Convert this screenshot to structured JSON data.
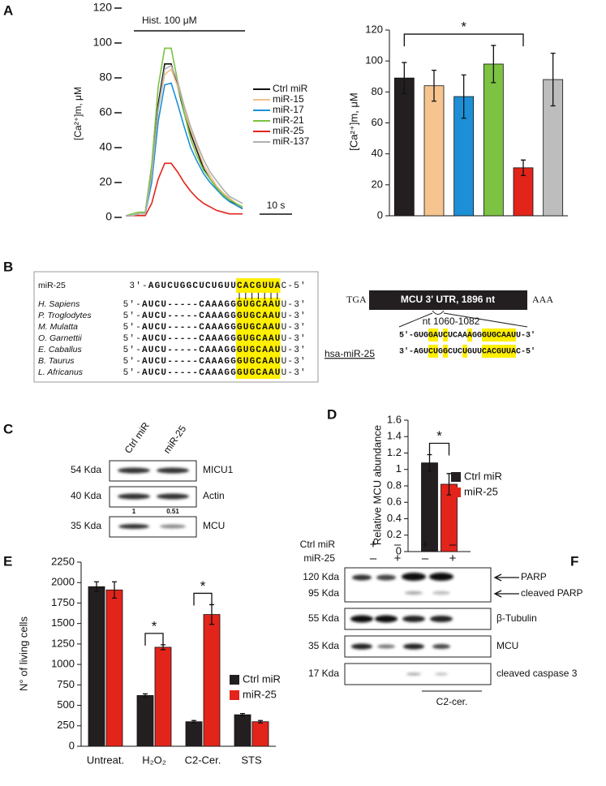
{
  "panel_labels": [
    "A",
    "B",
    "C",
    "D",
    "E",
    "F"
  ],
  "chart_data": [
    {
      "type": "line",
      "ylabel": "[Ca²⁺]m, μM",
      "treatment": "Hist. 100 μM",
      "scale_bar": {
        "length": 10,
        "label": "10 s"
      },
      "x": [
        0,
        2,
        4,
        6,
        8,
        10,
        12,
        14,
        16,
        18,
        20,
        22,
        24,
        26,
        28,
        30,
        32,
        34,
        36
      ],
      "xlim": [
        0,
        36
      ],
      "ylim": [
        0,
        120
      ],
      "yticks": [
        0,
        20,
        40,
        60,
        80,
        100,
        120
      ],
      "series": [
        {
          "name": "Ctrl miR",
          "color": "#111111",
          "values": [
            1,
            1,
            2,
            2,
            25,
            65,
            88,
            88,
            75,
            60,
            48,
            38,
            28,
            22,
            17,
            13,
            10,
            7,
            5
          ]
        },
        {
          "name": "miR-15",
          "color": "#f2c08e",
          "values": [
            1,
            1,
            2,
            2,
            24,
            62,
            82,
            85,
            75,
            62,
            50,
            40,
            30,
            24,
            18,
            14,
            11,
            8,
            6
          ]
        },
        {
          "name": "miR-17",
          "color": "#1d8fd6",
          "values": [
            1,
            1,
            2,
            2,
            20,
            55,
            76,
            77,
            65,
            52,
            40,
            32,
            25,
            20,
            16,
            12,
            9,
            7,
            5
          ]
        },
        {
          "name": "miR-21",
          "color": "#7dc242",
          "values": [
            1,
            2,
            3,
            3,
            30,
            75,
            97,
            97,
            78,
            60,
            45,
            35,
            27,
            22,
            17,
            13,
            10,
            8,
            6
          ]
        },
        {
          "name": "miR-25",
          "color": "#e3241b",
          "values": [
            1,
            1,
            1,
            1,
            8,
            22,
            31,
            31,
            26,
            20,
            15,
            11,
            8,
            6,
            4,
            3,
            2,
            2,
            2
          ]
        },
        {
          "name": "miR-137",
          "color": "#b0b0b0",
          "values": [
            1,
            1,
            2,
            2,
            24,
            62,
            85,
            87,
            78,
            64,
            52,
            42,
            33,
            26,
            21,
            16,
            12,
            10,
            8
          ]
        }
      ]
    },
    {
      "type": "bar",
      "ylabel": "[Ca²⁺]m, μM",
      "categories": [
        null,
        null,
        null,
        null,
        null,
        null
      ],
      "values": [
        89,
        84,
        77,
        98,
        31,
        88
      ],
      "errors": [
        10,
        10,
        14,
        12,
        5,
        17
      ],
      "colors": [
        "#231f20",
        "#f5c48f",
        "#1d8fd6",
        "#7dc242",
        "#e3241b",
        "#bdbdbd"
      ],
      "ylim": [
        0,
        120
      ],
      "yticks": [
        0,
        20,
        40,
        60,
        80,
        100,
        120
      ],
      "significance": [
        {
          "bars": [
            0,
            4
          ],
          "label": "*"
        }
      ]
    },
    {
      "type": "bar",
      "ylabel": "Relative MCU abundance",
      "categories": [
        null
      ],
      "series": [
        {
          "name": "Ctrl miR",
          "color": "#231f20",
          "values": [
            1.08
          ],
          "errors": [
            0.1
          ]
        },
        {
          "name": "miR-25",
          "color": "#e3241b",
          "values": [
            0.82
          ],
          "errors": [
            0.13
          ]
        }
      ],
      "ylim": [
        0,
        1.6
      ],
      "yticks": [
        0,
        0.2,
        0.4,
        0.6,
        0.8,
        1,
        1.2,
        1.4,
        1.6
      ],
      "significance": [
        {
          "category": 0,
          "label": "*"
        }
      ]
    },
    {
      "type": "bar",
      "ylabel": "N° of living cells",
      "categories": [
        "Untreat.",
        "H₂O₂",
        "C2-Cer.",
        "STS"
      ],
      "series": [
        {
          "name": "Ctrl miR",
          "color": "#231f20",
          "values": [
            1950,
            620,
            300,
            385
          ],
          "errors": [
            60,
            20,
            15,
            15
          ]
        },
        {
          "name": "miR-25",
          "color": "#e3241b",
          "values": [
            1910,
            1210,
            1610,
            300
          ],
          "errors": [
            100,
            30,
            120,
            15
          ]
        }
      ],
      "ylim": [
        0,
        2250
      ],
      "yticks": [
        0,
        250,
        500,
        750,
        1000,
        1250,
        1500,
        1750,
        2000,
        2250
      ],
      "significance": [
        {
          "category": 1,
          "label": "*"
        },
        {
          "category": 2,
          "label": "*"
        }
      ]
    }
  ],
  "alignment": {
    "mirna": {
      "name": "miR-25",
      "seq": [
        "3'-",
        "AGUCUGGCUCUGUU",
        "CACGUUA",
        "C-5'"
      ]
    },
    "species": [
      {
        "name": "H. Sapiens",
        "seq": [
          "5'-",
          "AUCU",
          "-----",
          "CAAAGG",
          "GUGCAAU",
          "U-3'"
        ]
      },
      {
        "name": "P. Troglodytes",
        "seq": [
          "5'-",
          "AUCU",
          "-----",
          "CAAAGG",
          "GUGCAAU",
          "U-3'"
        ]
      },
      {
        "name": "M. Mulatta",
        "seq": [
          "5'-",
          "AUCU",
          "-----",
          "CAAAGG",
          "GUGCAAU",
          "U-3'"
        ]
      },
      {
        "name": "O. Garnettii",
        "seq": [
          "5'-",
          "AUCU",
          "-----",
          "CAAAGG",
          "GUGCAAU",
          "U-3'"
        ]
      },
      {
        "name": "E. Caballus",
        "seq": [
          "5'-",
          "AUCU",
          "-----",
          "CAAAGG",
          "GUGCAAU",
          "U-3'"
        ]
      },
      {
        "name": "B. Taurus",
        "seq": [
          "5'-",
          "AUCU",
          "-----",
          "CAAAGG",
          "GUGCAAU",
          "U-3'"
        ]
      },
      {
        "name": "L. Africanus",
        "seq": [
          "5'-",
          "AUCU",
          "-----",
          "CAAAGG",
          "GUGCAAU",
          "U-3'"
        ]
      }
    ]
  },
  "utr": {
    "left": "TGA",
    "label": "MCU 3' UTR, 1896 nt",
    "right": "AAA",
    "site": "nt 1060-1082",
    "target": [
      "5'-GUG",
      "GA",
      "U",
      "C",
      "UCAA",
      "A",
      "GG",
      "GUGCAAU",
      "U-3'"
    ],
    "mirna_name": "hsa-miR-25",
    "mirna": [
      "3'-AGU",
      "CU",
      "G",
      "G",
      "CUC",
      "U",
      "GUU",
      "CACGUUA",
      "C-5'"
    ]
  },
  "blot_c": {
    "lanes": [
      "Ctrl miR",
      "miR-25"
    ],
    "rows": [
      {
        "size": "54 Kda",
        "protein": "MICU1"
      },
      {
        "size": "40 Kda",
        "protein": "Actin"
      },
      {
        "size": "35 Kda",
        "protein": "MCU"
      }
    ],
    "quant": [
      1,
      0.51
    ]
  },
  "blot_f": {
    "groups": [
      {
        "name": "Ctrl miR",
        "lanes": [
          "+",
          "–",
          "+",
          "–"
        ]
      },
      {
        "name": "miR-25",
        "lanes": [
          "–",
          "+",
          "–",
          "+"
        ]
      }
    ],
    "rows": [
      {
        "size": "120 Kda",
        "protein": "PARP"
      },
      {
        "size": "95 Kda",
        "protein": "cleaved PARP"
      },
      {
        "size": "55 Kda",
        "protein": "β-Tubulin"
      },
      {
        "size": "35 Kda",
        "protein": "MCU"
      },
      {
        "size": "17 Kda",
        "protein": "cleaved caspase 3"
      }
    ],
    "treatment": "C2-cer."
  }
}
